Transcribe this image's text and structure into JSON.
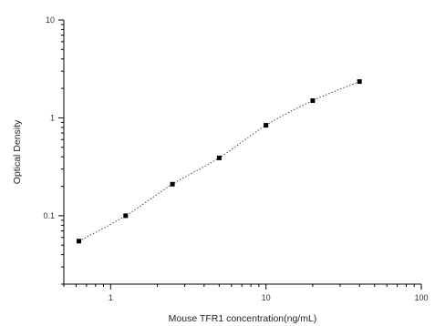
{
  "chart_data": {
    "type": "scatter",
    "title": "",
    "xlabel": "Mouse TFR1 concentration(ng/mL)",
    "ylabel": "Optical Density",
    "x_scale": "log",
    "y_scale": "log",
    "xlim": [
      0.5,
      100
    ],
    "ylim": [
      0.02,
      10
    ],
    "x_ticks": [
      {
        "value": 1,
        "label": "1"
      },
      {
        "value": 10,
        "label": "10"
      },
      {
        "value": 100,
        "label": "100"
      }
    ],
    "y_ticks": [
      {
        "value": 0.1,
        "label": "0.1"
      },
      {
        "value": 1,
        "label": "1"
      },
      {
        "value": 10,
        "label": "10"
      }
    ],
    "grid": false,
    "marker_color": "#000000",
    "line_style": "dotted",
    "series": [
      {
        "x": [
          0.625,
          1.25,
          2.5,
          5,
          10,
          20,
          40
        ],
        "y": [
          0.055,
          0.1,
          0.21,
          0.39,
          0.84,
          1.5,
          2.35
        ]
      }
    ]
  }
}
